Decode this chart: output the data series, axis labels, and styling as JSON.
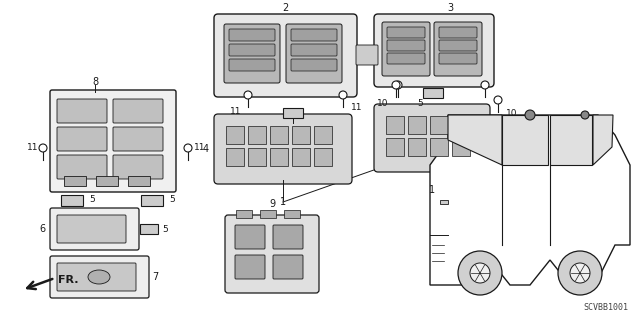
{
  "part_number": "SCVBB1001",
  "background_color": "#ffffff",
  "line_color": "#1a1a1a",
  "figsize": [
    6.4,
    3.19
  ],
  "dpi": 100,
  "xlim": [
    0,
    640
  ],
  "ylim": [
    0,
    319
  ]
}
